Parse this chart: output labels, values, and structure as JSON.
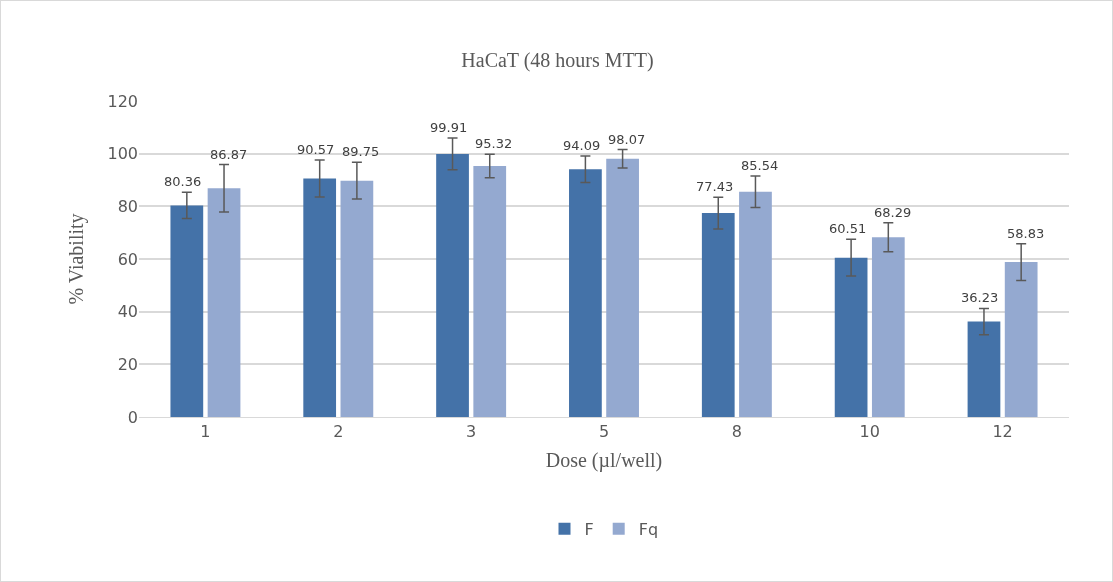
{
  "chart_data": {
    "type": "bar",
    "title": "HaCaT (48 hours MTT)",
    "xlabel": "Dose (µl/well)",
    "ylabel": "% Viability",
    "categories": [
      "1",
      "2",
      "3",
      "5",
      "8",
      "10",
      "12"
    ],
    "series": [
      {
        "name": "F",
        "color": "#4472a8",
        "values": [
          80.36,
          90.57,
          99.91,
          94.09,
          77.43,
          60.51,
          36.23
        ],
        "errors": [
          5,
          7,
          6,
          5,
          6,
          7,
          5
        ]
      },
      {
        "name": "Fq",
        "color": "#94a9d0",
        "values": [
          86.87,
          89.75,
          95.32,
          98.07,
          85.54,
          68.29,
          58.83
        ],
        "errors": [
          9,
          7,
          4.5,
          3.5,
          6,
          5.5,
          7
        ]
      }
    ],
    "ylim": [
      0,
      120
    ],
    "yticks": [
      0,
      20,
      40,
      60,
      80,
      100,
      120
    ],
    "grid": "y",
    "legend": "bottom",
    "data_labels": true
  }
}
